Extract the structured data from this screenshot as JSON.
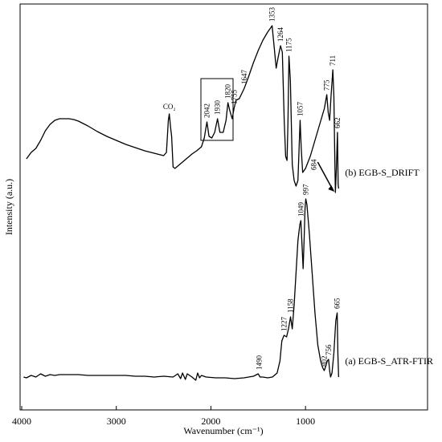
{
  "chart_data": {
    "type": "line",
    "x_label": "Wavenumber (cm⁻¹)",
    "y_label": "Intensity (a.u.)",
    "xlim": [
      4017,
      -290
    ],
    "ylim": [
      0,
      506
    ],
    "xticks": [
      4000,
      3000,
      2000,
      1000
    ],
    "series": [
      {
        "name": "(b) EGB-S_DRIFT",
        "color": "#000000",
        "x": [
          3950,
          3900,
          3850,
          3800,
          3750,
          3700,
          3650,
          3600,
          3550,
          3500,
          3450,
          3400,
          3300,
          3200,
          3100,
          3000,
          2900,
          2800,
          2700,
          2600,
          2500,
          2470,
          2450,
          2440,
          2425,
          2415,
          2400,
          2380,
          2330,
          2280,
          2230,
          2200,
          2150,
          2100,
          2070,
          2042,
          2020,
          1990,
          1960,
          1930,
          1905,
          1870,
          1840,
          1820,
          1800,
          1775,
          1755,
          1735,
          1700,
          1647,
          1600,
          1550,
          1500,
          1450,
          1400,
          1370,
          1353,
          1330,
          1310,
          1290,
          1264,
          1245,
          1225,
          1210,
          1195,
          1185,
          1175,
          1160,
          1140,
          1120,
          1100,
          1080,
          1057,
          1045,
          1030,
          1000,
          950,
          900,
          850,
          800,
          775,
          760,
          745,
          730,
          711,
          700,
          690,
          684,
          675,
          662,
          655,
          650
        ],
        "values": [
          313,
          321,
          326,
          336,
          348,
          356,
          361,
          363,
          363,
          363,
          362,
          360,
          354,
          347,
          341,
          336,
          331,
          327,
          323,
          320,
          317,
          321,
          361,
          369,
          351,
          341,
          303,
          301,
          306,
          311,
          316,
          319,
          323,
          328,
          339,
          359,
          341,
          339,
          346,
          363,
          346,
          346,
          361,
          383,
          373,
          363,
          376,
          386,
          388,
          401,
          416,
          433,
          448,
          461,
          471,
          476,
          479,
          451,
          426,
          439,
          454,
          446,
          361,
          316,
          311,
          361,
          441,
          411,
          306,
          286,
          279,
          286,
          361,
          326,
          296,
          301,
          316,
          336,
          356,
          376,
          393,
          371,
          361,
          391,
          424,
          391,
          311,
          271,
          296,
          346,
          281,
          276
        ],
        "peaks": [
          {
            "x": 2042,
            "y": 359
          },
          {
            "x": 1930,
            "y": 363
          },
          {
            "x": 1820,
            "y": 383
          },
          {
            "x": 1755,
            "y": 376
          },
          {
            "x": 1647,
            "y": 401
          },
          {
            "x": 1353,
            "y": 479
          },
          {
            "x": 1264,
            "y": 454
          },
          {
            "x": 1175,
            "y": 441
          },
          {
            "x": 1057,
            "y": 361
          },
          {
            "x": 775,
            "y": 393
          },
          {
            "x": 711,
            "y": 424
          },
          {
            "x": 662,
            "y": 346
          }
        ],
        "arrow_peaks": [
          {
            "x": 684,
            "y": 271
          }
        ],
        "annotation": {
          "text": "CO₂",
          "x": 2440,
          "y": 369
        }
      },
      {
        "name": "(a) EGB-S_ATR-FTIR",
        "color": "#000000",
        "x": [
          3980,
          3950,
          3900,
          3850,
          3800,
          3750,
          3700,
          3650,
          3600,
          3500,
          3400,
          3300,
          3200,
          3100,
          3000,
          2900,
          2800,
          2700,
          2600,
          2500,
          2400,
          2350,
          2320,
          2300,
          2270,
          2250,
          2200,
          2160,
          2140,
          2120,
          2100,
          2050,
          1950,
          1850,
          1750,
          1650,
          1550,
          1500,
          1480,
          1450,
          1400,
          1350,
          1300,
          1270,
          1250,
          1227,
          1200,
          1180,
          1158,
          1140,
          1120,
          1100,
          1080,
          1060,
          1049,
          1035,
          1025,
          1015,
          1005,
          997,
          985,
          960,
          930,
          900,
          870,
          840,
          820,
          802,
          790,
          770,
          756,
          745,
          735,
          720,
          700,
          680,
          665,
          658,
          650
        ],
        "values": [
          41,
          40,
          43,
          41,
          45,
          42,
          44,
          43,
          44,
          44,
          44,
          43,
          43,
          43,
          43,
          43,
          42,
          42,
          41,
          42,
          41,
          45,
          39,
          46,
          38,
          45,
          41,
          37,
          46,
          40,
          43,
          41,
          40,
          40,
          39,
          40,
          42,
          45,
          41,
          41,
          40,
          41,
          46,
          61,
          86,
          93,
          91,
          101,
          116,
          101,
          131,
          171,
          211,
          231,
          236,
          201,
          176,
          211,
          251,
          263,
          256,
          221,
          171,
          121,
          81,
          61,
          53,
          49,
          53,
          61,
          63,
          49,
          41,
          46,
          71,
          111,
          121,
          71,
          41
        ],
        "peaks": [
          {
            "x": 1490,
            "y": 45
          },
          {
            "x": 1227,
            "y": 93
          },
          {
            "x": 1158,
            "y": 116
          },
          {
            "x": 1049,
            "y": 236
          },
          {
            "x": 997,
            "y": 263
          },
          {
            "x": 802,
            "y": 49
          },
          {
            "x": 756,
            "y": 63
          },
          {
            "x": 665,
            "y": 121
          }
        ]
      }
    ]
  }
}
